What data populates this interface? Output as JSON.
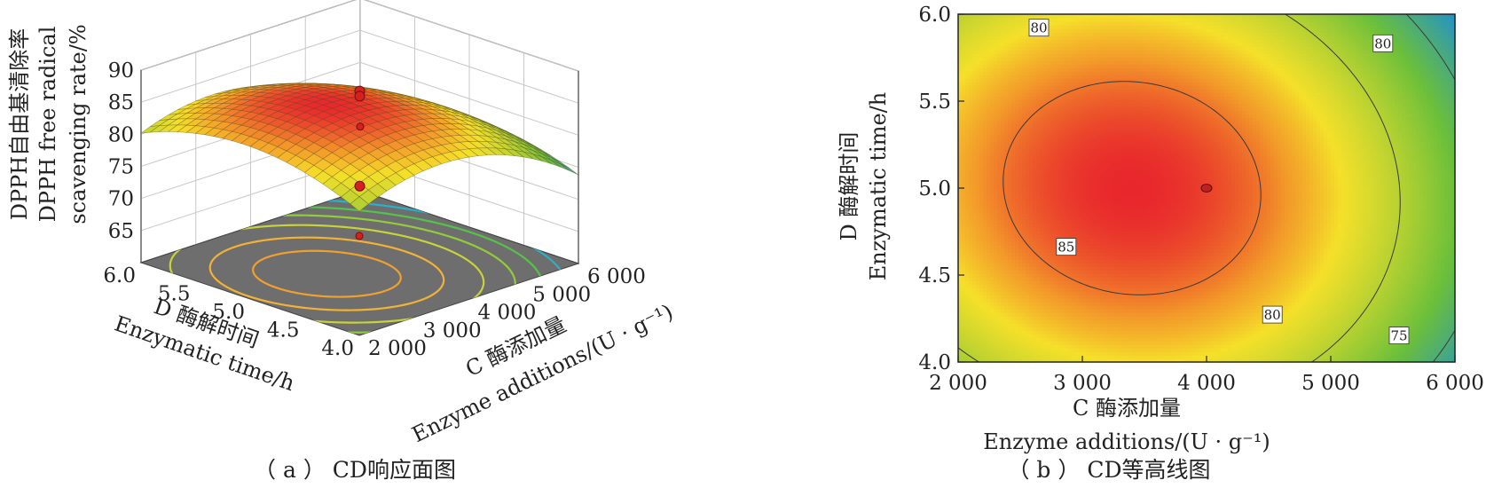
{
  "chart_data": [
    {
      "type": "surface3d",
      "caption": "（ a ） CD响应面图",
      "zlabel_cn": "DPPH自由基清除率",
      "zlabel_en_1": "DPPH free radical",
      "zlabel_en_2": "scavenging rate/%",
      "xlabel_cn": "C 酶添加量",
      "xlabel_en": "Enzyme additions/(U · g⁻¹)",
      "ylabel_cn": "D 酶解时间",
      "ylabel_en": "Enzymatic time/h",
      "x_ticks": [
        "2 000",
        "3 000",
        "4 000",
        "5 000",
        "6 000"
      ],
      "y_ticks": [
        "4.0",
        "4.5",
        "5.0",
        "5.5",
        "6.0"
      ],
      "z_ticks": [
        "65",
        "70",
        "75",
        "80",
        "85",
        "90"
      ],
      "xlim": [
        2000,
        6000
      ],
      "ylim": [
        4.0,
        6.0
      ],
      "zlim": [
        60,
        90
      ],
      "model": {
        "peak_x": 3400,
        "peak_y": 5.0,
        "peak_z": 86.5,
        "ax": 5.6,
        "ay": 4.0,
        "axy": 0.6
      },
      "points": [
        {
          "x": 4000,
          "y": 5.0,
          "z": 86.8
        },
        {
          "x": 4000,
          "y": 5.0,
          "z": 86.0
        },
        {
          "x": 4000,
          "y": 5.0,
          "z": 72.0
        },
        {
          "x": 2000,
          "y": 4.0,
          "z": 75.5
        },
        {
          "x": 6000,
          "y": 6.0,
          "z": 70.0
        }
      ],
      "colors": {
        "high": "#e8272c",
        "mid": "#f5e02a",
        "low_green": "#6bbf3a",
        "low_blue": "#1f8fd0",
        "floor": "#6e6e6e"
      }
    },
    {
      "type": "contour",
      "caption": "（ b ） CD等高线图",
      "xlabel_cn": "C 酶添加量",
      "xlabel_en": "Enzyme additions/(U · g⁻¹)",
      "ylabel_cn": "D 酶解时间",
      "ylabel_en": "Enzymatic time/h",
      "x_ticks": [
        "2 000",
        "3 000",
        "4 000",
        "5 000",
        "6 000"
      ],
      "y_ticks": [
        "4.0",
        "4.5",
        "5.0",
        "5.5",
        "6.0"
      ],
      "xlim": [
        2000,
        6000
      ],
      "ylim": [
        4.0,
        6.0
      ],
      "contour_levels": [
        75,
        80,
        85
      ],
      "contour_labels": [
        {
          "text": "80",
          "x": 2650,
          "y": 5.92
        },
        {
          "text": "80",
          "x": 5420,
          "y": 5.83
        },
        {
          "text": "85",
          "x": 2870,
          "y": 4.66
        },
        {
          "text": "80",
          "x": 4530,
          "y": 4.27
        },
        {
          "text": "75",
          "x": 5550,
          "y": 4.15
        }
      ],
      "design_point": {
        "x": 4000,
        "y": 5.0
      }
    }
  ]
}
